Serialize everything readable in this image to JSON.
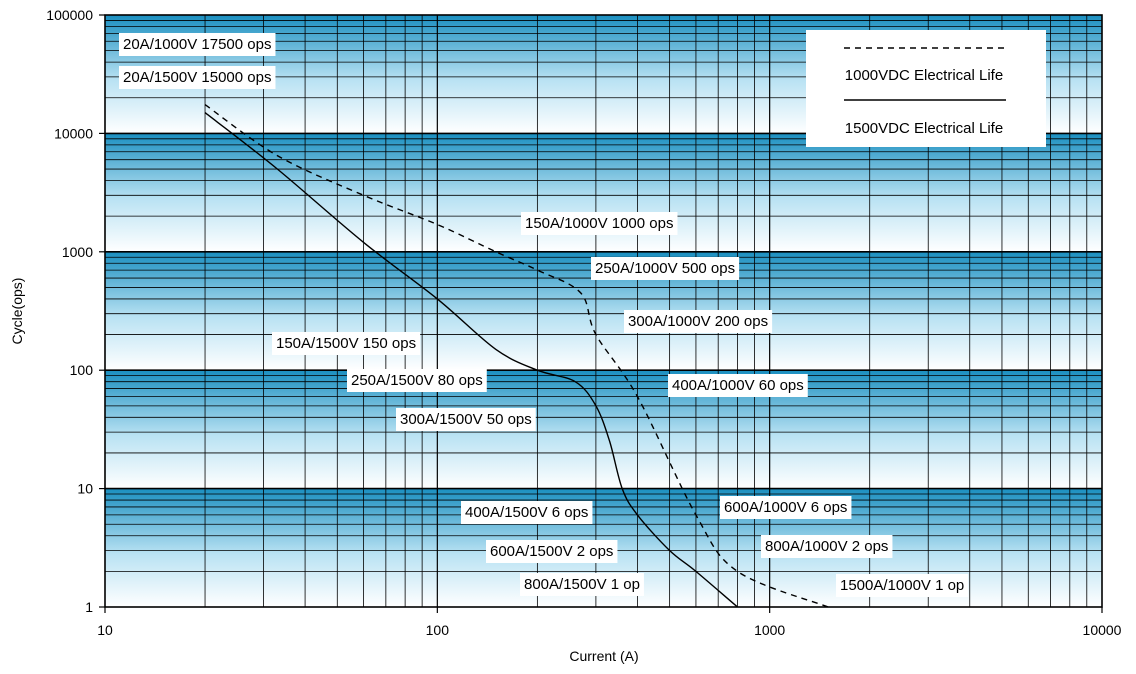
{
  "chart_data": {
    "type": "line",
    "xlabel": "Current (A)",
    "ylabel": "Cycle(ops)",
    "x_scale": "log",
    "y_scale": "log",
    "xlim": [
      10,
      10000
    ],
    "ylim": [
      1,
      100000
    ],
    "x_ticks": [
      "10",
      "100",
      "1000",
      "10000"
    ],
    "y_ticks": [
      "1",
      "10",
      "100",
      "1000",
      "10000",
      "100000"
    ],
    "grid": true,
    "legend": {
      "placement": "top-right",
      "entries": [
        {
          "label": "1000VDC  Electrical Life",
          "style": "dashed"
        },
        {
          "label": "1500VDC  Electrical Life",
          "style": "solid"
        }
      ]
    },
    "series": [
      {
        "name": "1000VDC  Electrical Life",
        "style": "dashed",
        "x": [
          20,
          33,
          60,
          100,
          150,
          200,
          270,
          300,
          400,
          600,
          800,
          1500
        ],
        "y": [
          17500,
          6500,
          3000,
          1700,
          1000,
          700,
          450,
          200,
          60,
          6,
          2,
          1
        ]
      },
      {
        "name": "1500VDC  Electrical Life",
        "style": "solid",
        "x": [
          20,
          33,
          60,
          100,
          150,
          200,
          260,
          300,
          330,
          360,
          400,
          500,
          600,
          800
        ],
        "y": [
          15000,
          5000,
          1200,
          400,
          150,
          100,
          80,
          50,
          25,
          10,
          6,
          3,
          2,
          1
        ]
      }
    ],
    "annotations": [
      {
        "text": "20A/1000V 17500 ops"
      },
      {
        "text": "20A/1500V 15000 ops"
      },
      {
        "text": "150A/1000V 1000 ops"
      },
      {
        "text": "250A/1000V 500 ops"
      },
      {
        "text": "300A/1000V 200 ops"
      },
      {
        "text": "150A/1500V 150 ops"
      },
      {
        "text": "250A/1500V 80 ops"
      },
      {
        "text": "400A/1000V 60 ops"
      },
      {
        "text": "300A/1500V 50 ops"
      },
      {
        "text": "400A/1500V 6 ops"
      },
      {
        "text": "600A/1000V 6 ops"
      },
      {
        "text": "600A/1500V 2 ops"
      },
      {
        "text": "800A/1000V 2 ops"
      },
      {
        "text": "800A/1500V 1 op"
      },
      {
        "text": "1500A/1000V 1 op"
      }
    ],
    "colors": {
      "band_dark": "#1b8fc0",
      "band_light": "#ffffff",
      "grid": "#000000",
      "line": "#000000"
    }
  }
}
